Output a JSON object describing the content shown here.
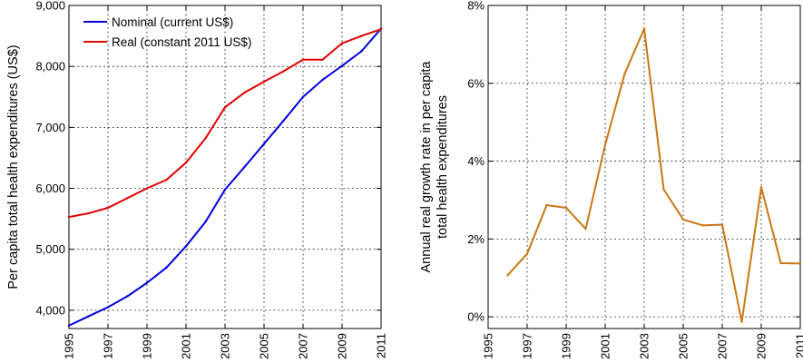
{
  "chart_data": [
    {
      "type": "line",
      "x": [
        1995,
        1996,
        1997,
        1998,
        1999,
        2000,
        2001,
        2002,
        2003,
        2004,
        2005,
        2006,
        2007,
        2008,
        2009,
        2010,
        2011
      ],
      "series": [
        {
          "name": "Nominal (current US$)",
          "color": "#0000e0",
          "values": [
            3748,
            3900,
            4050,
            4230,
            4450,
            4700,
            5050,
            5450,
            5980,
            6350,
            6730,
            7110,
            7500,
            7780,
            8010,
            8250,
            8620
          ]
        },
        {
          "name": "Real (constant 2011 US$)",
          "color": "#e00000",
          "values": [
            5530,
            5590,
            5680,
            5840,
            6000,
            6140,
            6420,
            6820,
            7330,
            7570,
            7750,
            7920,
            8110,
            8110,
            8380,
            8500,
            8610
          ]
        }
      ],
      "xlim": [
        1995,
        2011
      ],
      "ylim": [
        3700,
        9000
      ],
      "xticks": [
        "1995",
        "1997",
        "1999",
        "2001",
        "2003",
        "2005",
        "2007",
        "2009",
        "2011"
      ],
      "yticks": [
        "4,000",
        "5,000",
        "6,000",
        "7,000",
        "8,000",
        "9,000"
      ],
      "title": "",
      "xlabel": "",
      "ylabel": "Per capita total health expenditures (US$)",
      "grid": true,
      "legend": "top-left"
    },
    {
      "type": "line",
      "x": [
        1996,
        1997,
        1998,
        1999,
        2000,
        2001,
        2002,
        2003,
        2004,
        2005,
        2006,
        2007,
        2008,
        2009,
        2010,
        2011
      ],
      "series": [
        {
          "color": "#c87814",
          "values": [
            1.07,
            1.62,
            2.87,
            2.8,
            2.26,
            4.42,
            6.25,
            7.4,
            3.27,
            2.5,
            2.35,
            2.37,
            -0.13,
            3.33,
            1.38,
            1.37
          ]
        }
      ],
      "xlim": [
        1995,
        2011
      ],
      "ylim": [
        -0.3,
        8
      ],
      "xticks": [
        "1995",
        "1997",
        "1999",
        "2001",
        "2003",
        "2005",
        "2007",
        "2009",
        "2011"
      ],
      "yticks": [
        "0%",
        "2%",
        "4%",
        "6%",
        "8%"
      ],
      "title": "",
      "xlabel": "",
      "ylabel": [
        "Annual real growth rate in per capita",
        "total health expenditures"
      ],
      "grid": true
    }
  ]
}
